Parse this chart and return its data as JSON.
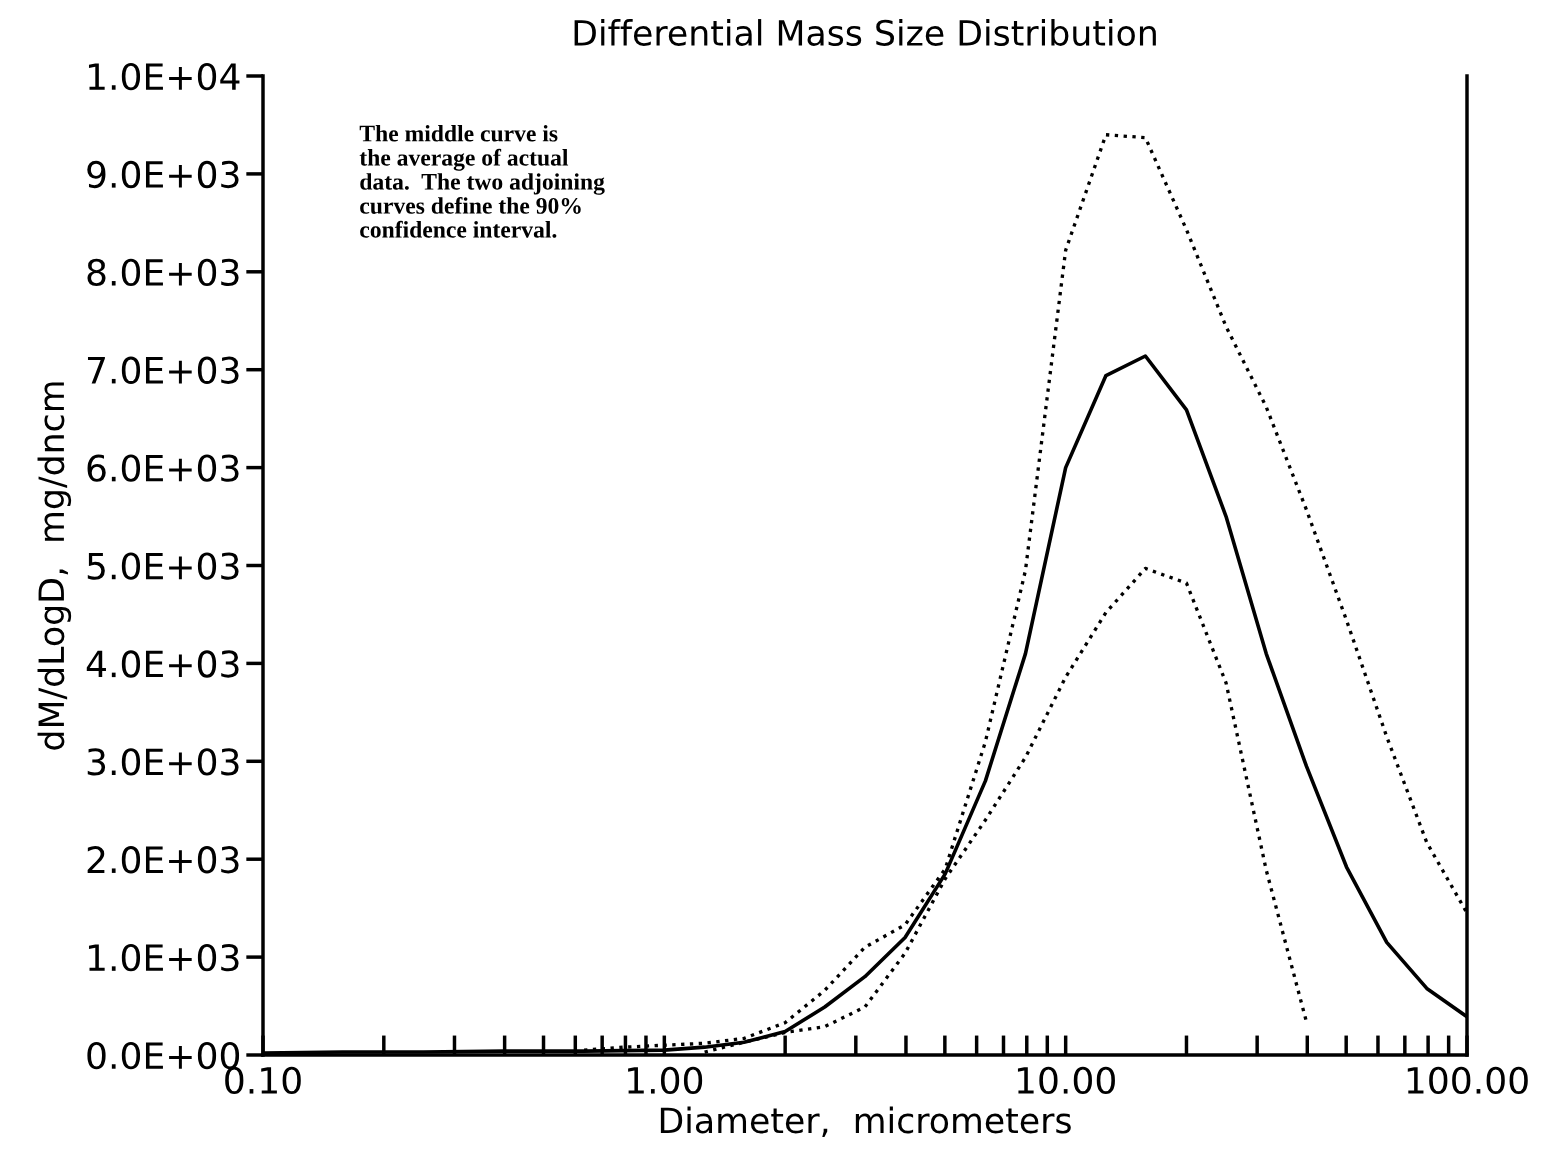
{
  "chart_data": {
    "type": "line",
    "title": "Differential Mass Size Distribution",
    "xlabel": "Diameter,  micrometers",
    "ylabel": "dM/dLogD,  mg/dncm",
    "log": "x",
    "grid": false,
    "marker": "none",
    "xlim": [
      0.1,
      100
    ],
    "xticks": [
      {
        "value": 0.1,
        "label": "0.10"
      },
      {
        "value": 1,
        "label": "1.00"
      },
      {
        "value": 10,
        "label": "10.00"
      },
      {
        "value": 100,
        "label": "100.00"
      }
    ],
    "ylim": [
      0,
      10000
    ],
    "yticks": [
      {
        "value": 0,
        "label": "0.0E+00"
      },
      {
        "value": 1000,
        "label": "1.0E+03"
      },
      {
        "value": 2000,
        "label": "2.0E+03"
      },
      {
        "value": 3000,
        "label": "3.0E+03"
      },
      {
        "value": 4000,
        "label": "4.0E+03"
      },
      {
        "value": 5000,
        "label": "5.0E+03"
      },
      {
        "value": 6000,
        "label": "6.0E+03"
      },
      {
        "value": 7000,
        "label": "7.0E+03"
      },
      {
        "value": 8000,
        "label": "8.0E+03"
      },
      {
        "value": 9000,
        "label": "9.0E+03"
      },
      {
        "value": 10000,
        "label": "1.0E+04"
      }
    ],
    "annotations": [
      "The middle curve is\nthe average of actual\ndata.  The two adjoining\ncurves define the 90%\nconfidence interval."
    ],
    "series": [
      {
        "color": "#000000",
        "line_style": "solid",
        "x": [
          0.1,
          0.158,
          0.251,
          0.398,
          0.631,
          1.0,
          1.26,
          1.58,
          2.0,
          2.51,
          3.16,
          3.98,
          5.01,
          6.31,
          7.94,
          10.0,
          12.6,
          15.8,
          20.0,
          25.1,
          31.6,
          39.8,
          50.1,
          63.1,
          79.4,
          100
        ],
        "values": [
          20,
          30,
          30,
          40,
          40,
          50,
          80,
          130,
          240,
          490,
          800,
          1200,
          1850,
          2800,
          4100,
          6000,
          6940,
          7140,
          6590,
          5500,
          4100,
          2950,
          1920,
          1150,
          680,
          390
        ]
      },
      {
        "color": "#000000",
        "line_style": "dotted",
        "x": [
          0.631,
          0.794,
          1.0,
          1.26,
          1.58,
          2.0,
          2.51,
          3.16,
          3.98,
          5.01,
          6.31,
          7.94,
          10.0,
          12.6,
          15.8,
          20.0,
          25.1,
          31.6,
          39.8,
          50.1,
          63.1,
          79.4,
          100
        ],
        "values": [
          50,
          80,
          100,
          120,
          170,
          330,
          660,
          1100,
          1330,
          1900,
          3200,
          4950,
          8220,
          9400,
          9370,
          8430,
          7440,
          6620,
          5570,
          4440,
          3250,
          2170,
          1450
        ]
      },
      {
        "color": "#000000",
        "line_style": "dotted",
        "x": [
          1.26,
          1.58,
          2.0,
          2.51,
          3.16,
          3.98,
          5.01,
          6.31,
          7.94,
          10.0,
          12.6,
          15.8,
          20.0,
          25.1,
          31.6,
          39.8
        ],
        "values": [
          30,
          130,
          230,
          290,
          490,
          1040,
          1800,
          2400,
          3040,
          3860,
          4520,
          4970,
          4820,
          3800,
          1890,
          340
        ]
      }
    ]
  }
}
